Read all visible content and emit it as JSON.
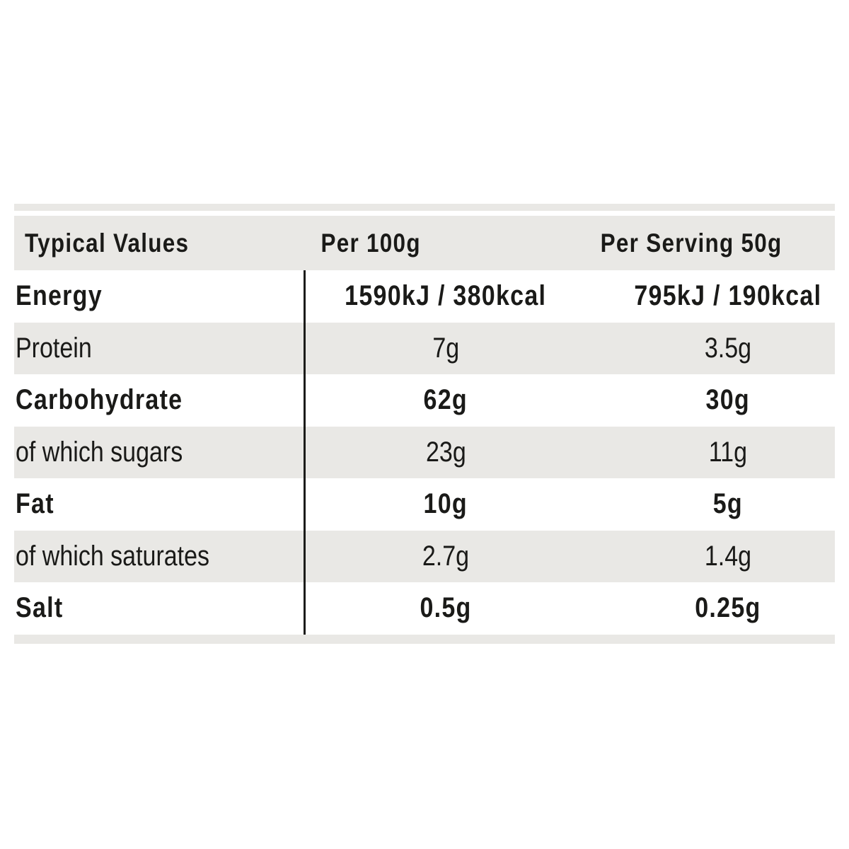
{
  "chart_data": {
    "type": "table",
    "columns": [
      "Typical Values",
      "Per 100g",
      "Per Serving 50g"
    ],
    "rows": [
      {
        "label": "Energy",
        "per_100g": "1590kJ / 380kcal",
        "per_serving_50g": "795kJ / 190kcal",
        "emphasis": true
      },
      {
        "label": "Protein",
        "per_100g": "7g",
        "per_serving_50g": "3.5g",
        "emphasis": false
      },
      {
        "label": "Carbohydrate",
        "per_100g": "62g",
        "per_serving_50g": "30g",
        "emphasis": true
      },
      {
        "label": "of which sugars",
        "per_100g": "23g",
        "per_serving_50g": "11g",
        "emphasis": false
      },
      {
        "label": "Fat",
        "per_100g": "10g",
        "per_serving_50g": "5g",
        "emphasis": true
      },
      {
        "label": "of which saturates",
        "per_100g": "2.7g",
        "per_serving_50g": "1.4g",
        "emphasis": false
      },
      {
        "label": "Salt",
        "per_100g": "0.5g",
        "per_serving_50g": "0.25g",
        "emphasis": true
      }
    ],
    "layout": {
      "striped_rows": true,
      "stripe_pattern": "header and rows 2,4,6 grey; others white",
      "column_divider_after_label_column": true,
      "top_border_band": true,
      "bottom_border_band": true,
      "legend_position": "none",
      "grid": false
    },
    "colors": {
      "stripe": "#e9e8e5",
      "background": "#ffffff",
      "text": "#1a1a18",
      "divider": "#1c1c1a"
    }
  }
}
